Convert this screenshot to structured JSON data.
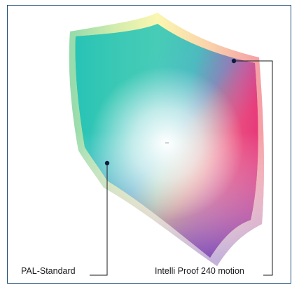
{
  "labels": {
    "pal_standard": "PAL-Standard",
    "intelli_proof": "Intelli Proof 240 motion"
  },
  "colors": {
    "frame_border": "#1f4f7a",
    "marker": "#0f1e3c",
    "leader_line": "#1a1a1a"
  }
}
